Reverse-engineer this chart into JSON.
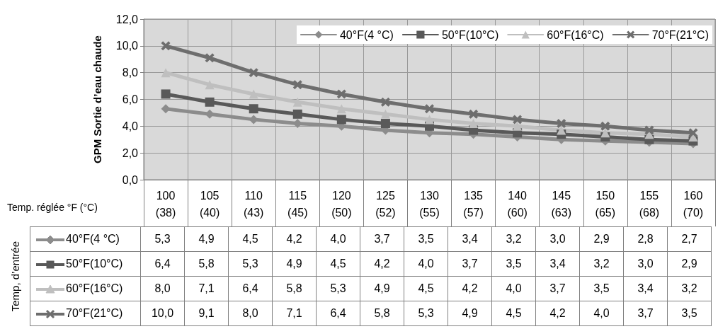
{
  "chart_data": {
    "type": "line",
    "ylabel": "GPM Sortie d’eau chaude",
    "xlabel": "Temp. réglée °F (°C)",
    "annotations": [
      "Temp, d’entrée"
    ],
    "categories": [
      "100\n(38)",
      "105\n(40)",
      "110\n(43)",
      "115\n(45)",
      "120\n(50)",
      "125\n(52)",
      "130\n(55)",
      "135\n(57)",
      "140\n(60)",
      "145\n(63)",
      "150\n(65)",
      "155\n(68)",
      "160\n(70)"
    ],
    "series": [
      {
        "name": "40°F(4 °C)",
        "color": "#8c8c8c",
        "marker": "diamond",
        "values": [
          5.3,
          4.9,
          4.5,
          4.2,
          4.0,
          3.7,
          3.5,
          3.4,
          3.2,
          3.0,
          2.9,
          2.8,
          2.7
        ],
        "value_labels": [
          "5,3",
          "4,9",
          "4,5",
          "4,2",
          "4,0",
          "3,7",
          "3,5",
          "3,4",
          "3,2",
          "3,0",
          "2,9",
          "2,8",
          "2,7"
        ]
      },
      {
        "name": "50°F(10°C)",
        "color": "#595959",
        "marker": "square",
        "values": [
          6.4,
          5.8,
          5.3,
          4.9,
          4.5,
          4.2,
          4.0,
          3.7,
          3.5,
          3.4,
          3.2,
          3.0,
          2.9
        ],
        "value_labels": [
          "6,4",
          "5,8",
          "5,3",
          "4,9",
          "4,5",
          "4,2",
          "4,0",
          "3,7",
          "3,5",
          "3,4",
          "3,2",
          "3,0",
          "2,9"
        ]
      },
      {
        "name": "60°F(16°C)",
        "color": "#bfbfbf",
        "marker": "triangle",
        "values": [
          8.0,
          7.1,
          6.4,
          5.8,
          5.3,
          4.9,
          4.5,
          4.2,
          4.0,
          3.7,
          3.5,
          3.4,
          3.2
        ],
        "value_labels": [
          "8,0",
          "7,1",
          "6,4",
          "5,8",
          "5,3",
          "4,9",
          "4,5",
          "4,2",
          "4,0",
          "3,7",
          "3,5",
          "3,4",
          "3,2"
        ]
      },
      {
        "name": "70°F(21°C)",
        "color": "#6e6e6e",
        "marker": "cross",
        "values": [
          10.0,
          9.1,
          8.0,
          7.1,
          6.4,
          5.8,
          5.3,
          4.9,
          4.5,
          4.2,
          4.0,
          3.7,
          3.5
        ],
        "value_labels": [
          "10,0",
          "9,1",
          "8,0",
          "7,1",
          "6,4",
          "5,8",
          "5,3",
          "4,9",
          "4,5",
          "4,2",
          "4,0",
          "3,7",
          "3,5"
        ]
      }
    ],
    "ylim": [
      0,
      12
    ],
    "yticks": [
      {
        "value": 0,
        "label": "0,0"
      },
      {
        "value": 2,
        "label": "2,0"
      },
      {
        "value": 4,
        "label": "4,0"
      },
      {
        "value": 6,
        "label": "6,0"
      },
      {
        "value": 8,
        "label": "8,0"
      },
      {
        "value": 10,
        "label": "10,0"
      },
      {
        "value": 12,
        "label": "12,0"
      }
    ],
    "grid": true,
    "legend": "top right",
    "line_style": "solid"
  }
}
